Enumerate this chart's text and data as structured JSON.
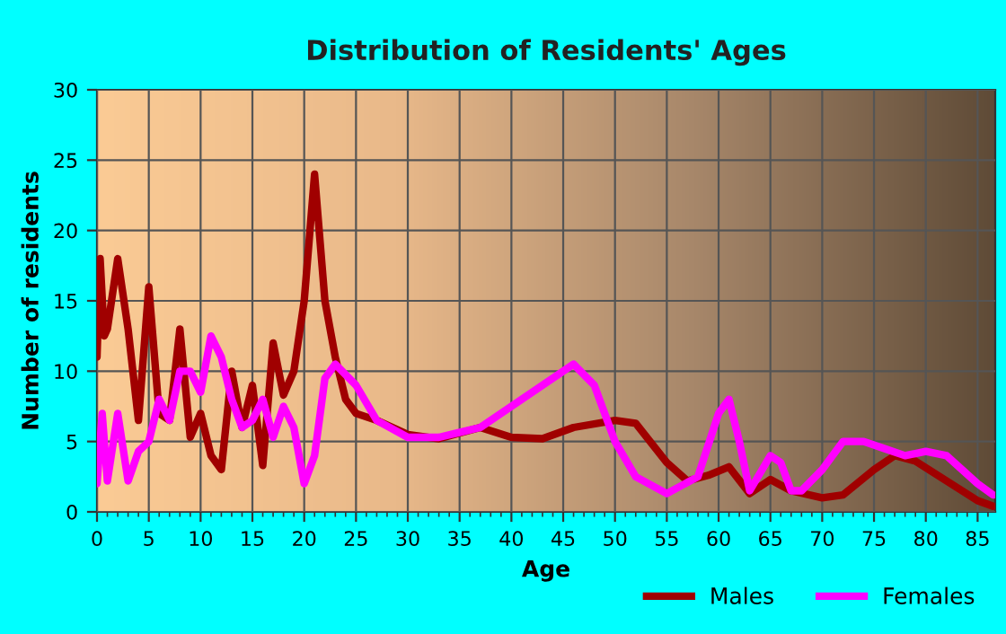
{
  "chart_data": {
    "type": "line",
    "title": "Distribution of Residents' Ages",
    "xlabel": "Age",
    "ylabel": "Number of residents",
    "xlim": [
      0,
      86.7
    ],
    "xticks": [
      0,
      5,
      10,
      15,
      20,
      25,
      30,
      35,
      40,
      45,
      50,
      55,
      60,
      65,
      70,
      75,
      80,
      85
    ],
    "ylim": [
      0,
      30
    ],
    "yticks": [
      0,
      5,
      10,
      15,
      20,
      25,
      30
    ],
    "grid": true,
    "legend": "bottom right",
    "marker": "none",
    "line_style": "solid",
    "series": [
      {
        "name": "Males",
        "color": "#a00000",
        "x": [
          0,
          0.3,
          0.7,
          1,
          2,
          3,
          4,
          5,
          6,
          7,
          8,
          9,
          10,
          11,
          12,
          13,
          14,
          15,
          16,
          17,
          18,
          19,
          20,
          21,
          22,
          23,
          24,
          25,
          27,
          30,
          33,
          37,
          40,
          43,
          46,
          50,
          52,
          55,
          57,
          59,
          61,
          63,
          65,
          67,
          70,
          72,
          75,
          77,
          79,
          82,
          85,
          86.5
        ],
        "values": [
          11,
          18,
          12.5,
          13,
          18,
          13,
          6.5,
          16,
          7,
          6.5,
          13,
          5.3,
          7,
          4,
          3,
          10,
          6,
          9,
          3.3,
          12,
          8.3,
          10,
          15,
          24,
          15,
          11,
          8,
          7,
          6.5,
          5.5,
          5.2,
          6,
          5.3,
          5.2,
          6,
          6.5,
          6.3,
          3.5,
          2.2,
          2.6,
          3.2,
          1.3,
          2.3,
          1.5,
          1,
          1.2,
          3,
          4,
          3.6,
          2.2,
          0.8,
          0.4
        ]
      },
      {
        "name": "Females",
        "color": "#ff00ff",
        "x": [
          0,
          0.5,
          1,
          2,
          3,
          4,
          5,
          6,
          7,
          8,
          9,
          10,
          11,
          12,
          13,
          14,
          15,
          16,
          17,
          18,
          19,
          20,
          21,
          22,
          23,
          25,
          27,
          30,
          33,
          37,
          40,
          43,
          46,
          48,
          50,
          52,
          55,
          58,
          60,
          61,
          62,
          63,
          65,
          66,
          67,
          68,
          70,
          72,
          74,
          76,
          78,
          80,
          82,
          85,
          86.5
        ],
        "values": [
          2,
          7,
          2.2,
          7,
          2.2,
          4.3,
          5,
          8,
          6.5,
          10,
          10,
          8.5,
          12.5,
          11,
          8,
          6,
          6.5,
          8,
          5.3,
          7.5,
          6,
          2,
          4,
          9.5,
          10.5,
          9,
          6.5,
          5.3,
          5.3,
          6,
          7.5,
          9,
          10.5,
          9,
          5,
          2.5,
          1.3,
          2.5,
          7,
          8,
          5,
          1.5,
          4,
          3.5,
          1.5,
          1.5,
          3,
          5,
          5,
          4.5,
          4,
          4.3,
          4,
          2,
          1.2
        ]
      }
    ]
  }
}
